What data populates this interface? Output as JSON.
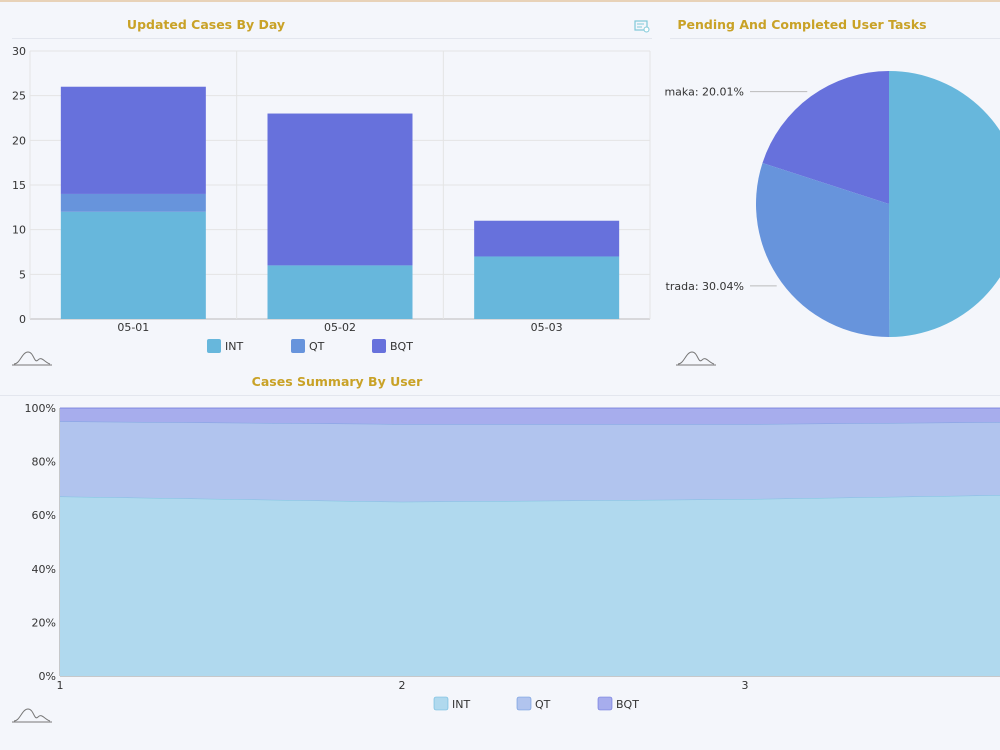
{
  "colors": {
    "INT": "#67b7dc",
    "QT": "#6794dc",
    "BQT": "#6771dc",
    "title": "#c9a227"
  },
  "chart_data": [
    {
      "type": "bar",
      "stacked": true,
      "title": "Updated Cases By Day",
      "categories": [
        "05-01",
        "05-02",
        "05-03"
      ],
      "series": [
        {
          "name": "INT",
          "values": [
            12,
            6,
            7
          ]
        },
        {
          "name": "QT",
          "values": [
            2,
            0,
            0
          ]
        },
        {
          "name": "BQT",
          "values": [
            12,
            17,
            4
          ]
        }
      ],
      "ylim": [
        0,
        30
      ],
      "yticks": [
        "0",
        "5",
        "10",
        "15",
        "20",
        "25",
        "30"
      ],
      "grid": true,
      "legend_position": "bottom"
    },
    {
      "type": "pie",
      "title": "Pending And Completed User Tasks",
      "slices": [
        {
          "label": "maka: 20.01%",
          "value": 20.01
        },
        {
          "label": "trada: 30.04%",
          "value": 30.04
        }
      ]
    },
    {
      "type": "area",
      "stacked": true,
      "normalized": true,
      "title": "Cases Summary By User",
      "x": [
        1,
        2,
        3,
        4
      ],
      "x_tick_labels": [
        "1",
        "2",
        "3"
      ],
      "series": [
        {
          "name": "INT",
          "values": [
            67,
            65,
            66,
            68
          ]
        },
        {
          "name": "QT",
          "values": [
            28,
            29,
            28,
            27
          ]
        },
        {
          "name": "BQT",
          "values": [
            5,
            6,
            6,
            5
          ]
        }
      ],
      "ylim": [
        0,
        100
      ],
      "yticks": [
        "0%",
        "20%",
        "40%",
        "60%",
        "80%",
        "100%"
      ],
      "grid": true,
      "legend_position": "bottom"
    }
  ]
}
